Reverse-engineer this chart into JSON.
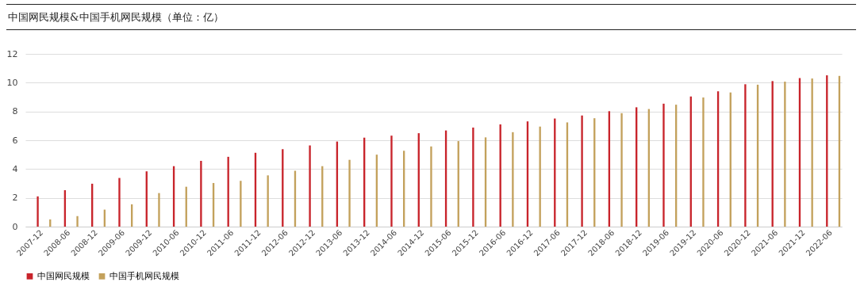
{
  "chart_data": {
    "type": "bar",
    "title": "中国网民规模&中国手机网民规模（单位：亿）",
    "categories": [
      "2007-12",
      "2008-06",
      "2008-12",
      "2009-06",
      "2009-12",
      "2010-06",
      "2010-12",
      "2011-06",
      "2011-12",
      "2012-06",
      "2012-12",
      "2013-06",
      "2013-12",
      "2014-06",
      "2014-12",
      "2015-06",
      "2015-12",
      "2016-06",
      "2016-12",
      "2017-06",
      "2017-12",
      "2018-06",
      "2018-12",
      "2019-06",
      "2019-12",
      "2020-06",
      "2020-12",
      "2021-06",
      "2021-12",
      "2022-06"
    ],
    "series": [
      {
        "name": "中国网民规模",
        "color": "#c8242b",
        "values": [
          2.1,
          2.53,
          2.98,
          3.38,
          3.84,
          4.2,
          4.57,
          4.85,
          5.13,
          5.38,
          5.64,
          5.91,
          6.18,
          6.32,
          6.49,
          6.68,
          6.88,
          7.1,
          7.31,
          7.51,
          7.72,
          8.02,
          8.29,
          8.54,
          9.04,
          9.4,
          9.89,
          10.11,
          10.32,
          10.51
        ]
      },
      {
        "name": "中国手机网民规模",
        "color": "#c3a15c",
        "values": [
          0.5,
          0.73,
          1.18,
          1.55,
          2.33,
          2.77,
          3.03,
          3.18,
          3.56,
          3.88,
          4.2,
          4.64,
          5.0,
          5.27,
          5.57,
          5.94,
          6.2,
          6.56,
          6.95,
          7.24,
          7.53,
          7.88,
          8.17,
          8.47,
          8.97,
          9.32,
          9.86,
          10.07,
          10.29,
          10.47
        ]
      }
    ],
    "ylim": [
      0,
      12
    ],
    "yticks": [
      0,
      2,
      4,
      6,
      8,
      10,
      12
    ],
    "grid": "y",
    "legend": "bottom"
  }
}
